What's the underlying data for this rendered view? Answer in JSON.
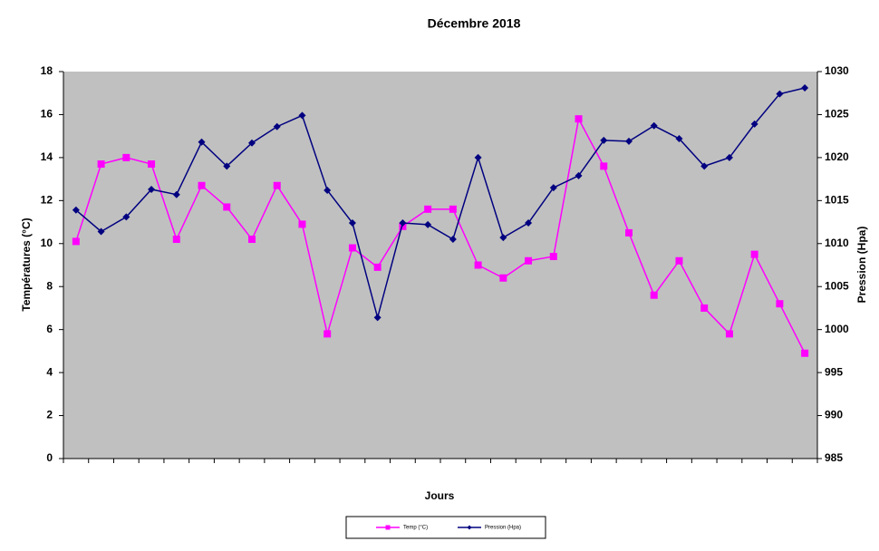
{
  "chart_data": {
    "type": "line",
    "title": "Décembre 2018",
    "x_label": "Jours",
    "y_label": "Températures (°C)",
    "y2_label": "Pression (Hpa)",
    "categories": [
      null,
      null,
      null,
      null,
      null,
      null,
      null,
      null,
      null,
      null,
      null,
      null,
      null,
      null,
      null,
      null,
      null,
      null,
      null,
      null,
      null,
      null,
      null,
      null,
      null,
      null,
      null,
      null,
      null,
      null
    ],
    "series": [
      {
        "name": "Temp (°C)",
        "color": "#ff00ff",
        "marker": "square",
        "values": [
          10.1,
          13.7,
          14.0,
          13.7,
          10.2,
          12.7,
          11.7,
          10.2,
          12.7,
          10.9,
          5.8,
          9.8,
          8.9,
          10.8,
          11.6,
          11.6,
          9.0,
          8.4,
          9.2,
          9.4,
          15.8,
          13.6,
          10.5,
          7.6,
          9.2,
          7.0,
          5.8,
          9.5,
          7.2,
          4.9
        ]
      },
      {
        "name": "Pression (Hpa)",
        "color": "#000080",
        "marker": "diamond",
        "axis": "y2",
        "values": [
          1013.9,
          1011.4,
          1013.1,
          1016.3,
          1015.7,
          1021.8,
          1019.0,
          1021.7,
          1023.6,
          1024.9,
          1016.2,
          1012.4,
          1001.4,
          1012.4,
          1012.2,
          1010.5,
          1020.0,
          1010.7,
          1012.4,
          1016.5,
          1017.9,
          1022.0,
          1021.9,
          1023.7,
          1022.2,
          1019.0,
          1020.0,
          1023.9,
          1027.4,
          1028.1
        ]
      }
    ],
    "ylim": [
      0,
      18
    ],
    "yticks": [
      0,
      2,
      4,
      6,
      8,
      10,
      12,
      14,
      16,
      18
    ],
    "y2lim": [
      985,
      1030
    ],
    "y2ticks": [
      985,
      990,
      995,
      1000,
      1005,
      1010,
      1015,
      1020,
      1025,
      1030
    ],
    "plot_background": "#c0c0c0",
    "legend": "bottom"
  }
}
